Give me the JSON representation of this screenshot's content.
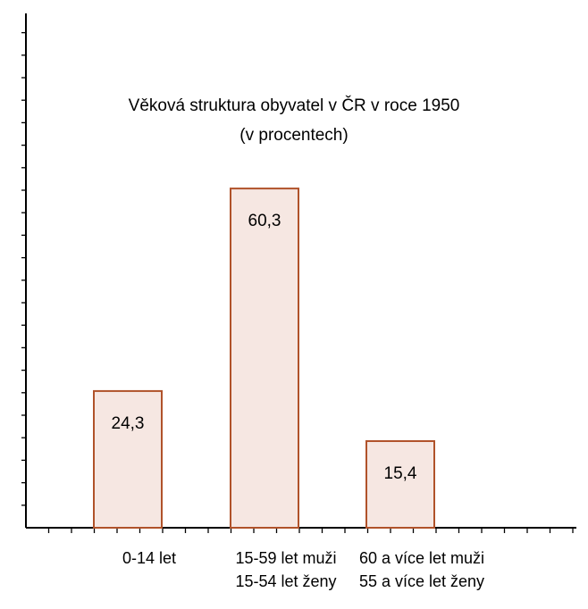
{
  "chart_data": {
    "type": "bar",
    "title": "Věková struktura obyvatel v ČR v roce 1950",
    "subtitle": "(v procentech)",
    "categories": [
      [
        "0-14 let"
      ],
      [
        "15-59 let muži",
        "15-54 let ženy"
      ],
      [
        "60 a více let muži",
        "55 a více let ženy"
      ]
    ],
    "values": [
      24.3,
      60.3,
      15.4
    ],
    "value_labels": [
      "24,3",
      "60,3",
      "15,4"
    ],
    "xlabel": "",
    "ylabel": "",
    "ylim": [
      0,
      100
    ],
    "grid": false,
    "colors": {
      "bar_fill": "#f6e7e2",
      "bar_stroke": "#b0522a",
      "axis": "#000000"
    }
  }
}
